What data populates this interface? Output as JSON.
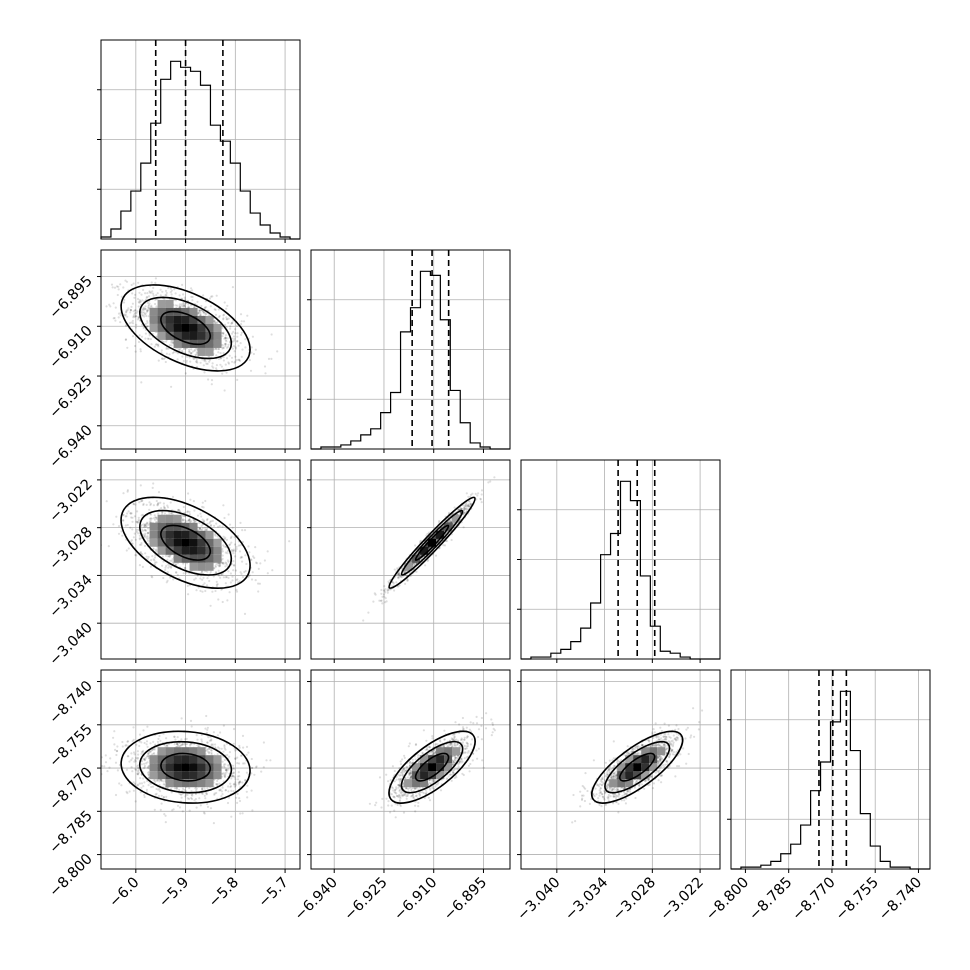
{
  "chart_data": {
    "type": "corner",
    "title": "",
    "variables": [
      {
        "range": [
          -6.07,
          -5.67
        ],
        "ticks": [
          -6.0,
          -5.9,
          -5.8,
          -5.7
        ],
        "tick_labels": [
          "−6.0",
          "−5.9",
          "−5.8",
          "−5.7"
        ],
        "quantiles": [
          -5.96,
          -5.9,
          -5.825
        ],
        "std": 0.05,
        "hist_counts": [
          1,
          5,
          14,
          24,
          38,
          58,
          80,
          89,
          86,
          84,
          77,
          57,
          49,
          38,
          24,
          13,
          7,
          3,
          1,
          0
        ]
      },
      {
        "range": [
          -6.947,
          -6.887
        ],
        "ticks": [
          -6.94,
          -6.925,
          -6.91,
          -6.895
        ],
        "tick_labels": [
          "−6.940",
          "−6.925",
          "−6.910",
          "−6.895"
        ],
        "quantiles": [
          -6.9165,
          -6.9105,
          -6.9055
        ],
        "std": 0.005,
        "hist_counts": [
          0,
          1,
          1,
          2,
          4,
          7,
          10,
          18,
          28,
          58,
          70,
          88,
          86,
          64,
          29,
          13,
          3,
          1,
          0,
          0
        ]
      },
      {
        "range": [
          -3.0445,
          -3.0195
        ],
        "ticks": [
          -3.04,
          -3.034,
          -3.028,
          -3.022
        ],
        "tick_labels": [
          "−3.040",
          "−3.034",
          "−3.028",
          "−3.022"
        ],
        "quantiles": [
          -3.0323,
          -3.0299,
          -3.0277
        ],
        "std": 0.0022,
        "hist_counts": [
          0,
          1,
          1,
          3,
          5,
          9,
          16,
          29,
          54,
          65,
          92,
          82,
          43,
          17,
          4,
          3,
          1,
          0,
          0,
          0
        ]
      },
      {
        "range": [
          -8.805,
          -8.736
        ],
        "ticks": [
          -8.8,
          -8.785,
          -8.77,
          -8.755,
          -8.74
        ],
        "tick_labels": [
          "−8.800",
          "−8.785",
          "−8.770",
          "−8.755",
          "−8.740"
        ],
        "quantiles": [
          -8.7745,
          -8.7697,
          -8.765
        ],
        "std": 0.0048,
        "hist_counts": [
          0,
          1,
          1,
          2,
          4,
          8,
          13,
          23,
          41,
          56,
          77,
          93,
          62,
          29,
          12,
          4,
          1,
          1,
          0,
          0
        ]
      }
    ],
    "correlations": [
      [
        1.0,
        -0.5,
        -0.5,
        -0.1
      ],
      [
        -0.5,
        1.0,
        0.97,
        0.72
      ],
      [
        -0.5,
        0.97,
        1.0,
        0.76
      ],
      [
        -0.1,
        0.72,
        0.76,
        1.0
      ]
    ],
    "hist_ylim_fraction": 1.12,
    "grid": true
  }
}
